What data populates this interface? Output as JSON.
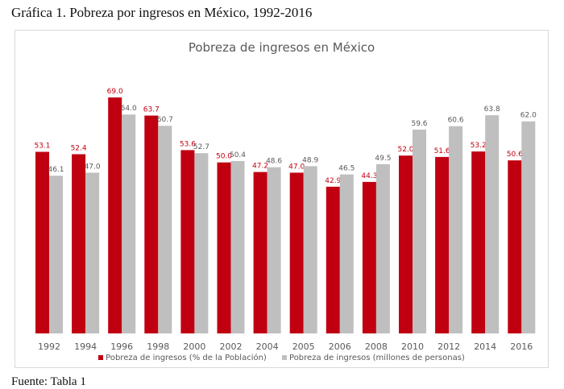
{
  "figure_title": "Gráfica 1. Pobreza por ingresos en México, 1992-2016",
  "source_note": "Fuente: Tabla 1",
  "chart_data": {
    "type": "bar",
    "title": "Pobreza de ingresos en México",
    "categories": [
      "1992",
      "1994",
      "1996",
      "1998",
      "2000",
      "2002",
      "2004",
      "2005",
      "2006",
      "2008",
      "2010",
      "2012",
      "2014",
      "2016"
    ],
    "series": [
      {
        "name": "Pobreza de ingresos (% de la Población)",
        "color": "#c00010",
        "values": [
          53.1,
          52.4,
          69.0,
          63.7,
          53.6,
          50.0,
          47.2,
          47.0,
          42.9,
          44.3,
          52.0,
          51.6,
          53.2,
          50.6
        ]
      },
      {
        "name": "Pobreza de ingresos (millones de personas)",
        "color": "#bfbfbf",
        "values": [
          46.1,
          47.0,
          64.0,
          60.7,
          52.7,
          50.4,
          48.6,
          48.9,
          46.5,
          49.5,
          59.6,
          60.6,
          63.8,
          62.0
        ]
      }
    ],
    "ylim": [
      0,
      75
    ],
    "grid": false,
    "legend": "bottom"
  }
}
